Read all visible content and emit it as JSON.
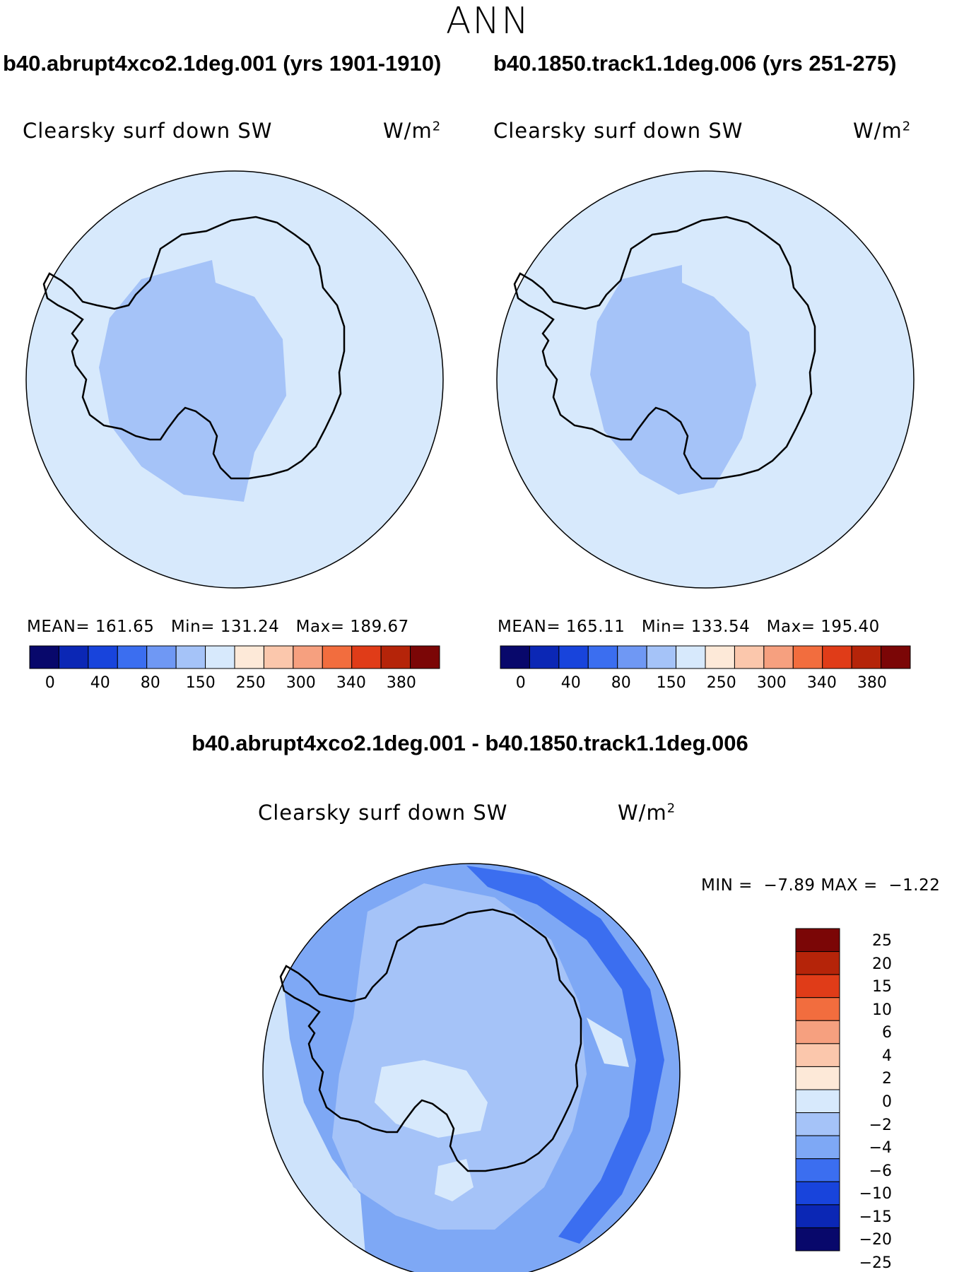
{
  "season": "ANN",
  "panels": [
    {
      "case_title": "b40.abrupt4xco2.1deg.001 (yrs 1901-1910)",
      "variable": "Clearsky surf down SW",
      "units": "W/m",
      "units_exp": "2",
      "stats": {
        "mean_label": "MEAN=",
        "mean": "161.65",
        "min_label": "Min=",
        "min": "131.24",
        "max_label": "Max=",
        "max": "189.67"
      }
    },
    {
      "case_title": "b40.1850.track1.1deg.006 (yrs 251-275)",
      "variable": "Clearsky surf down SW",
      "units": "W/m",
      "units_exp": "2",
      "stats": {
        "mean_label": "MEAN=",
        "mean": "165.11",
        "min_label": "Min=",
        "min": "133.54",
        "max_label": "Max=",
        "max": "195.40"
      }
    }
  ],
  "colorbar": {
    "colors": [
      "#08086b",
      "#0b27b5",
      "#1844dc",
      "#3b6ef0",
      "#6f98f4",
      "#a5c3f8",
      "#d7e9fc",
      "#fde9d8",
      "#fbc7ac",
      "#f6a07f",
      "#f26d3e",
      "#e03c18",
      "#b52409",
      "#7b0606"
    ],
    "ticks": [
      "0",
      "40",
      "80",
      "150",
      "250",
      "300",
      "340",
      "380"
    ]
  },
  "diff": {
    "title": "b40.abrupt4xco2.1deg.001 - b40.1850.track1.1deg.006",
    "variable": "Clearsky surf down SW",
    "units": "W/m",
    "units_exp": "2",
    "min_label": "MIN =",
    "min": "−7.89",
    "max_label": "MAX =",
    "max": "−1.22",
    "colorbar": {
      "colors": [
        "#7b0606",
        "#b52409",
        "#e03c18",
        "#f26d3e",
        "#f6a07f",
        "#fbc7ac",
        "#fde9d8",
        "#d7e9fc",
        "#a5c3f8",
        "#7ea8f5",
        "#3b6ef0",
        "#1844dc",
        "#0b27b5",
        "#08086b"
      ],
      "labels": [
        "25",
        "20",
        "15",
        "10",
        "6",
        "4",
        "2",
        "0",
        "−2",
        "−4",
        "−6",
        "−10",
        "−15",
        "−20",
        "−25"
      ]
    }
  }
}
